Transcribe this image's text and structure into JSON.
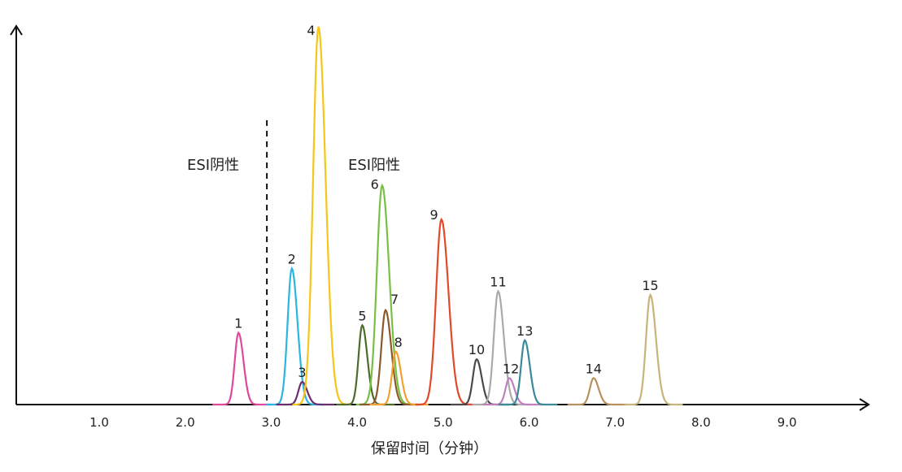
{
  "chart_data": {
    "type": "line",
    "title": "",
    "xlabel": "保留时间（分钟）",
    "ylabel": "",
    "xlim": [
      0.0,
      10.0
    ],
    "ylim": [
      0,
      100
    ],
    "x_ticks": [
      "1.0",
      "2.0",
      "3.0",
      "4.0",
      "5.0",
      "6.0",
      "7.0",
      "8.0",
      "9.0"
    ],
    "grid": false,
    "legend": "none",
    "divider": {
      "x": 2.95,
      "style": "dashed"
    },
    "regions": [
      {
        "label": "ESI阴性",
        "side": "left"
      },
      {
        "label": "ESI阳性",
        "side": "right"
      }
    ],
    "series": [
      {
        "label": "1",
        "rt": 2.62,
        "height": 19,
        "color": "#e0489a"
      },
      {
        "label": "2",
        "rt": 3.24,
        "height": 36,
        "color": "#2bb5e0"
      },
      {
        "label": "3",
        "rt": 3.36,
        "height": 6,
        "color": "#6b2d6b"
      },
      {
        "label": "4",
        "rt": 3.55,
        "height": 100,
        "color": "#f5c518"
      },
      {
        "label": "5",
        "rt": 4.06,
        "height": 21,
        "color": "#4f6b2a"
      },
      {
        "label": "6",
        "rt": 4.29,
        "height": 58,
        "color": "#78c043"
      },
      {
        "label": "7",
        "rt": 4.33,
        "height": 25,
        "color": "#8b5a2b"
      },
      {
        "label": "8",
        "rt": 4.45,
        "height": 14,
        "color": "#f0a030"
      },
      {
        "label": "9",
        "rt": 4.98,
        "height": 49,
        "color": "#e04a2a"
      },
      {
        "label": "10",
        "rt": 5.39,
        "height": 12,
        "color": "#4a4a4a"
      },
      {
        "label": "11",
        "rt": 5.64,
        "height": 30,
        "color": "#aaaaaa"
      },
      {
        "label": "12",
        "rt": 5.77,
        "height": 7,
        "color": "#c080c0"
      },
      {
        "label": "13",
        "rt": 5.95,
        "height": 17,
        "color": "#3a8a9a"
      },
      {
        "label": "14",
        "rt": 6.75,
        "height": 7,
        "color": "#b89060"
      },
      {
        "label": "15",
        "rt": 7.41,
        "height": 29,
        "color": "#c8b47a"
      }
    ]
  }
}
